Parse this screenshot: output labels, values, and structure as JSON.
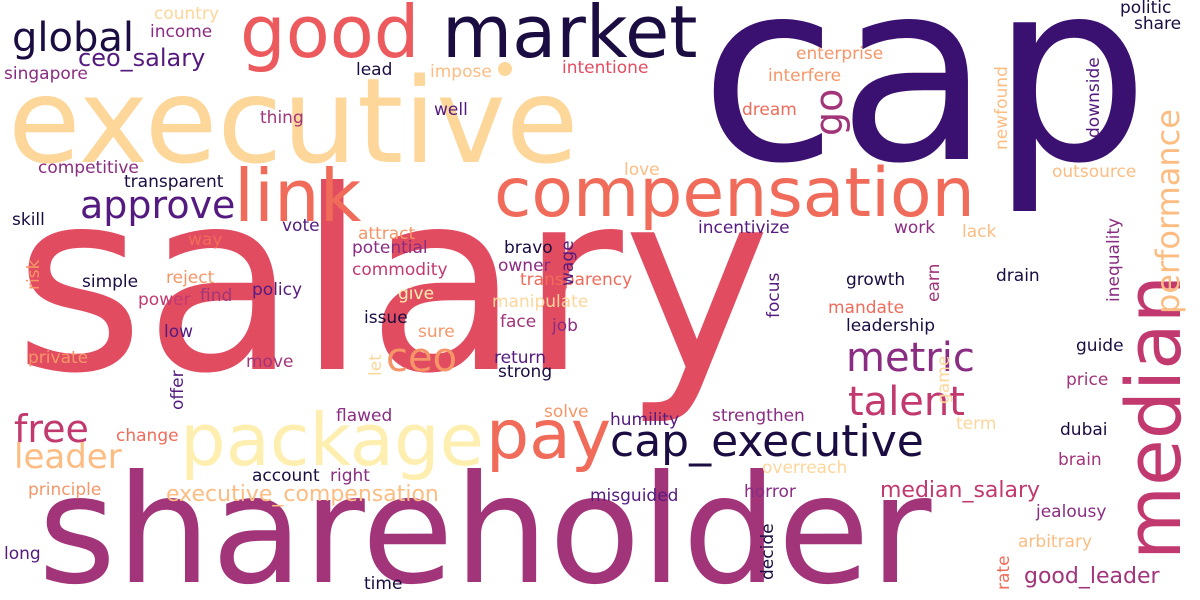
{
  "background": "#ffffff",
  "palette": [
    "#3a1170",
    "#541a7f",
    "#8a2c82",
    "#a23479",
    "#e24c61",
    "#f06b5a",
    "#f69668",
    "#fdbd82",
    "#fdd69a",
    "#feefb0"
  ],
  "words": [
    {
      "id": "salary",
      "text": "salary",
      "color": "#e24c61"
    },
    {
      "id": "cap",
      "text": "cap",
      "color": "#3a1170"
    },
    {
      "id": "executive",
      "text": "executive",
      "color": "#fdd69a"
    },
    {
      "id": "shareholder",
      "text": "shareholder",
      "color": "#a23479"
    },
    {
      "id": "market",
      "text": "market",
      "color": "#1b0c41"
    },
    {
      "id": "good",
      "text": "good",
      "color": "#ec5a5e"
    },
    {
      "id": "compensation",
      "text": "compensation",
      "color": "#f06b5a"
    },
    {
      "id": "link",
      "text": "link",
      "color": "#f06b5a"
    },
    {
      "id": "package",
      "text": "package",
      "color": "#feefb0"
    },
    {
      "id": "pay",
      "text": "pay",
      "color": "#f06b5a"
    },
    {
      "id": "median",
      "text": "median",
      "color": "#c2396f"
    },
    {
      "id": "cap_executive",
      "text": "cap_executive",
      "color": "#1b0c41"
    },
    {
      "id": "performance",
      "text": "performance",
      "color": "#fdbd82"
    },
    {
      "id": "global",
      "text": "global",
      "color": "#1b0c41"
    },
    {
      "id": "approve",
      "text": "approve",
      "color": "#541a7f"
    },
    {
      "id": "metric",
      "text": "metric",
      "color": "#8a2c82"
    },
    {
      "id": "talent",
      "text": "talent",
      "color": "#c2396f"
    },
    {
      "id": "ceo",
      "text": "ceo",
      "color": "#f69668"
    },
    {
      "id": "free",
      "text": "free",
      "color": "#c2396f"
    },
    {
      "id": "leader",
      "text": "leader",
      "color": "#fdbd82"
    },
    {
      "id": "go",
      "text": "go",
      "color": "#a23479"
    },
    {
      "id": "ceo_salary",
      "text": "ceo_salary",
      "color": "#541a7f"
    },
    {
      "id": "executive_compensation",
      "text": "executive_compensation",
      "color": "#fdbd82"
    },
    {
      "id": "median_salary",
      "text": "median_salary",
      "color": "#c2396f"
    },
    {
      "id": "good_leader",
      "text": "good_leader",
      "color": "#a23479"
    },
    {
      "id": "country",
      "text": "country",
      "color": "#fdd69a"
    },
    {
      "id": "income",
      "text": "income",
      "color": "#8a2c82"
    },
    {
      "id": "singapore",
      "text": "singapore",
      "color": "#8a2c82"
    },
    {
      "id": "lead",
      "text": "lead",
      "color": "#1b0c41"
    },
    {
      "id": "impose",
      "text": "impose",
      "color": "#fdbd82"
    },
    {
      "id": "intentione",
      "text": "intentione",
      "color": "#e24c61"
    },
    {
      "id": "enterprise",
      "text": "enterprise",
      "color": "#f69668"
    },
    {
      "id": "interfere",
      "text": "interfere",
      "color": "#f69668"
    },
    {
      "id": "newfound",
      "text": "newfound",
      "color": "#fdbd82"
    },
    {
      "id": "downside",
      "text": "downside",
      "color": "#541a7f"
    },
    {
      "id": "politic",
      "text": "politic",
      "color": "#1b0c41"
    },
    {
      "id": "share",
      "text": "share",
      "color": "#1b0c41"
    },
    {
      "id": "well",
      "text": "well",
      "color": "#541a7f"
    },
    {
      "id": "thing",
      "text": "thing",
      "color": "#a23479"
    },
    {
      "id": "dream",
      "text": "dream",
      "color": "#f06b5a"
    },
    {
      "id": "competitive",
      "text": "competitive",
      "color": "#8a2c82"
    },
    {
      "id": "love",
      "text": "love",
      "color": "#fdbd82"
    },
    {
      "id": "outsource",
      "text": "outsource",
      "color": "#fdbd82"
    },
    {
      "id": "transparent",
      "text": "transparent",
      "color": "#1b0c41"
    },
    {
      "id": "inequality",
      "text": "inequality",
      "color": "#8a2c82"
    },
    {
      "id": "skill",
      "text": "skill",
      "color": "#1b0c41"
    },
    {
      "id": "vote",
      "text": "vote",
      "color": "#541a7f"
    },
    {
      "id": "attract",
      "text": "attract",
      "color": "#f69668"
    },
    {
      "id": "incentivize",
      "text": "incentivize",
      "color": "#541a7f"
    },
    {
      "id": "work",
      "text": "work",
      "color": "#8a2c82"
    },
    {
      "id": "lack",
      "text": "lack",
      "color": "#fdbd82"
    },
    {
      "id": "risk",
      "text": "risk",
      "color": "#f69668"
    },
    {
      "id": "way",
      "text": "way",
      "color": "#f06b5a"
    },
    {
      "id": "potential",
      "text": "potential",
      "color": "#8a2c82"
    },
    {
      "id": "bravo",
      "text": "bravo",
      "color": "#1b0c41"
    },
    {
      "id": "wage",
      "text": "wage",
      "color": "#541a7f"
    },
    {
      "id": "owner",
      "text": "owner",
      "color": "#8a2c82"
    },
    {
      "id": "transparency",
      "text": "transparency",
      "color": "#f06b5a"
    },
    {
      "id": "reject",
      "text": "reject",
      "color": "#f69668"
    },
    {
      "id": "commodity",
      "text": "commodity",
      "color": "#c2396f"
    },
    {
      "id": "growth",
      "text": "growth",
      "color": "#1b0c41"
    },
    {
      "id": "earn",
      "text": "earn",
      "color": "#a23479"
    },
    {
      "id": "drain",
      "text": "drain",
      "color": "#1b0c41"
    },
    {
      "id": "simple",
      "text": "simple",
      "color": "#1b0c41"
    },
    {
      "id": "give",
      "text": "give",
      "color": "#feefb0"
    },
    {
      "id": "policy",
      "text": "policy",
      "color": "#541a7f"
    },
    {
      "id": "power",
      "text": "power",
      "color": "#c2396f"
    },
    {
      "id": "find",
      "text": "find",
      "color": "#a23479"
    },
    {
      "id": "manipulate",
      "text": "manipulate",
      "color": "#fdd69a"
    },
    {
      "id": "focus",
      "text": "focus",
      "color": "#541a7f"
    },
    {
      "id": "mandate",
      "text": "mandate",
      "color": "#f06b5a"
    },
    {
      "id": "issue",
      "text": "issue",
      "color": "#1b0c41"
    },
    {
      "id": "face",
      "text": "face",
      "color": "#a23479"
    },
    {
      "id": "job",
      "text": "job",
      "color": "#8a2c82"
    },
    {
      "id": "low",
      "text": "low",
      "color": "#541a7f"
    },
    {
      "id": "sure",
      "text": "sure",
      "color": "#f69668"
    },
    {
      "id": "leadership",
      "text": "leadership",
      "color": "#1b0c41"
    },
    {
      "id": "guide",
      "text": "guide",
      "color": "#1b0c41"
    },
    {
      "id": "private",
      "text": "private",
      "color": "#f69668"
    },
    {
      "id": "offer",
      "text": "offer",
      "color": "#541a7f"
    },
    {
      "id": "move",
      "text": "move",
      "color": "#a23479"
    },
    {
      "id": "let",
      "text": "let",
      "color": "#fdd69a"
    },
    {
      "id": "return",
      "text": "return",
      "color": "#541a7f"
    },
    {
      "id": "strong",
      "text": "strong",
      "color": "#1b0c41"
    },
    {
      "id": "game",
      "text": "game",
      "color": "#fdd69a"
    },
    {
      "id": "price",
      "text": "price",
      "color": "#a23479"
    },
    {
      "id": "flawed",
      "text": "flawed",
      "color": "#8a2c82"
    },
    {
      "id": "solve",
      "text": "solve",
      "color": "#f69668"
    },
    {
      "id": "humility",
      "text": "humility",
      "color": "#541a7f"
    },
    {
      "id": "strengthen",
      "text": "strengthen",
      "color": "#8a2c82"
    },
    {
      "id": "term",
      "text": "term",
      "color": "#fdd69a"
    },
    {
      "id": "change",
      "text": "change",
      "color": "#f06b5a"
    },
    {
      "id": "dubai",
      "text": "dubai",
      "color": "#1b0c41"
    },
    {
      "id": "brain",
      "text": "brain",
      "color": "#a23479"
    },
    {
      "id": "account",
      "text": "account",
      "color": "#1b0c41"
    },
    {
      "id": "right",
      "text": "right",
      "color": "#8a2c82"
    },
    {
      "id": "overreach",
      "text": "overreach",
      "color": "#fdd69a"
    },
    {
      "id": "principle",
      "text": "principle",
      "color": "#f69668"
    },
    {
      "id": "misguided",
      "text": "misguided",
      "color": "#541a7f"
    },
    {
      "id": "horror",
      "text": "horror",
      "color": "#8a2c82"
    },
    {
      "id": "decide",
      "text": "decide",
      "color": "#1b0c41"
    },
    {
      "id": "jealousy",
      "text": "jealousy",
      "color": "#8a2c82"
    },
    {
      "id": "arbitrary",
      "text": "arbitrary",
      "color": "#fdbd82"
    },
    {
      "id": "rate",
      "text": "rate",
      "color": "#f06b5a"
    },
    {
      "id": "long",
      "text": "long",
      "color": "#541a7f"
    },
    {
      "id": "time",
      "text": "time",
      "color": "#1b0c41"
    }
  ]
}
